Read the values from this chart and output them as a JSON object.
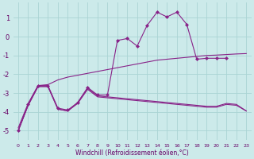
{
  "xlabel": "Windchill (Refroidissement éolien,°C)",
  "background_color": "#cceaea",
  "grid_color": "#aad4d4",
  "line_color": "#882288",
  "xlim": [
    -0.5,
    23.5
  ],
  "ylim": [
    -5.5,
    1.8
  ],
  "yticks": [
    -5,
    -4,
    -3,
    -2,
    -1,
    0,
    1
  ],
  "x_ticks": [
    0,
    1,
    2,
    3,
    4,
    5,
    6,
    7,
    8,
    9,
    10,
    11,
    12,
    13,
    14,
    15,
    16,
    17,
    18,
    19,
    20,
    21,
    22,
    23
  ],
  "line_wavy_x": [
    0,
    1,
    2,
    3,
    4,
    5,
    6,
    7,
    8,
    9,
    10,
    11,
    12,
    13,
    14,
    15,
    16,
    17,
    18,
    19,
    20,
    21
  ],
  "line_wavy_y": [
    -5.0,
    -3.6,
    -2.6,
    -2.6,
    -3.8,
    -3.9,
    -3.5,
    -2.7,
    -3.1,
    -3.1,
    -0.2,
    -0.1,
    -0.5,
    0.6,
    1.3,
    1.05,
    1.3,
    0.65,
    -1.2,
    -1.15,
    -1.15,
    -1.15
  ],
  "line_rising_x": [
    0,
    1,
    2,
    3,
    4,
    5,
    6,
    7,
    8,
    9,
    10,
    11,
    12,
    13,
    14,
    15,
    16,
    17,
    18,
    19,
    20,
    21,
    22,
    23
  ],
  "line_rising_y": [
    -4.85,
    -3.55,
    -2.6,
    -2.55,
    -2.3,
    -2.15,
    -2.05,
    -1.95,
    -1.85,
    -1.75,
    -1.65,
    -1.55,
    -1.45,
    -1.35,
    -1.25,
    -1.2,
    -1.15,
    -1.1,
    -1.05,
    -1.0,
    -0.98,
    -0.95,
    -0.92,
    -0.9
  ],
  "line_lower1_x": [
    0,
    1,
    2,
    3,
    4,
    5,
    6,
    7,
    8,
    9,
    10,
    11,
    12,
    13,
    14,
    15,
    16,
    17,
    18,
    19,
    20,
    21,
    22,
    23
  ],
  "line_lower1_y": [
    -5.0,
    -3.65,
    -2.65,
    -2.65,
    -3.85,
    -3.95,
    -3.5,
    -2.75,
    -3.15,
    -3.2,
    -3.25,
    -3.3,
    -3.35,
    -3.4,
    -3.45,
    -3.5,
    -3.55,
    -3.6,
    -3.65,
    -3.7,
    -3.7,
    -3.55,
    -3.6,
    -3.95
  ],
  "line_lower2_x": [
    0,
    1,
    2,
    3,
    4,
    5,
    6,
    7,
    8,
    9,
    10,
    11,
    12,
    13,
    14,
    15,
    16,
    17,
    18,
    19,
    20,
    21,
    22,
    23
  ],
  "line_lower2_y": [
    -5.0,
    -3.65,
    -2.65,
    -2.65,
    -3.85,
    -3.95,
    -3.55,
    -2.8,
    -3.2,
    -3.25,
    -3.3,
    -3.35,
    -3.4,
    -3.45,
    -3.5,
    -3.55,
    -3.6,
    -3.65,
    -3.7,
    -3.75,
    -3.75,
    -3.6,
    -3.65,
    -3.95
  ]
}
